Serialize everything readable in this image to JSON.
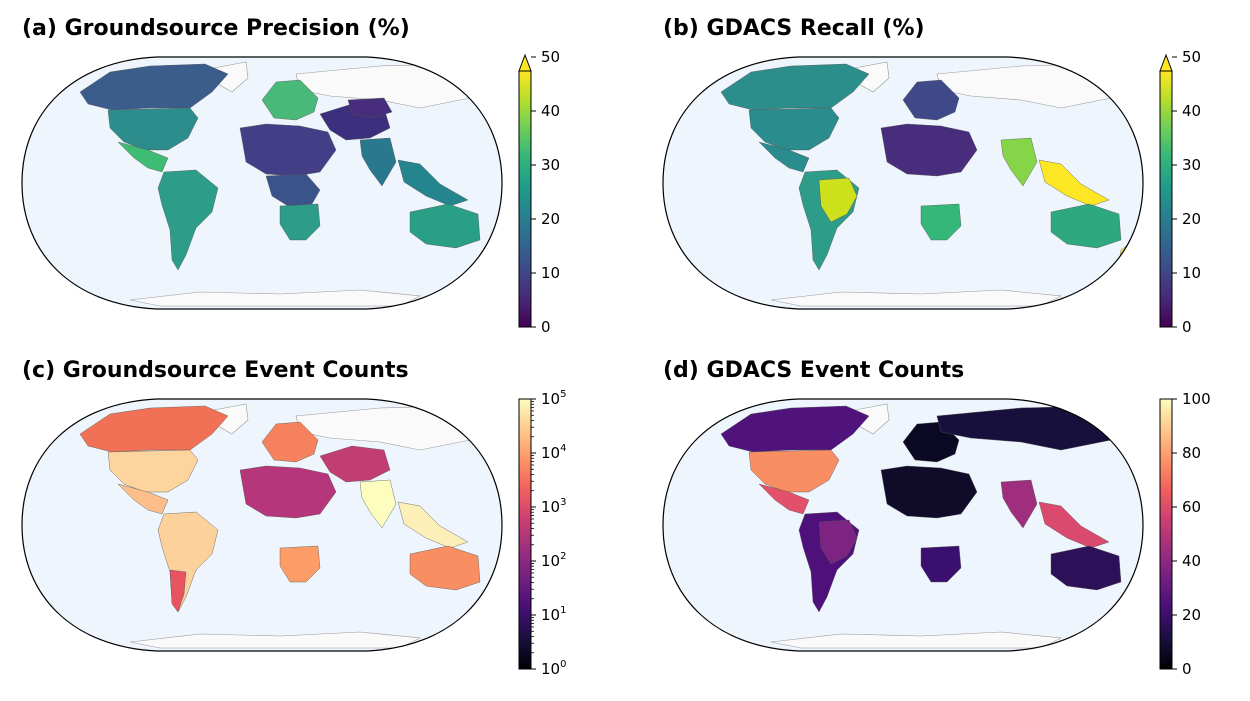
{
  "panels": [
    {
      "id": "a",
      "title": "(a) Groundsource Precision (%)",
      "colormap": "viridis",
      "colorbar": {
        "scale": "linear",
        "min": 0,
        "max": 50,
        "extend": "max",
        "ticks": [
          "0",
          "10",
          "20",
          "30",
          "40",
          "50"
        ]
      },
      "ocean_color": "#eef5fd",
      "land_color": "#fafafa"
    },
    {
      "id": "b",
      "title": "(b) GDACS Recall (%)",
      "colormap": "viridis",
      "colorbar": {
        "scale": "linear",
        "min": 0,
        "max": 50,
        "extend": "max",
        "ticks": [
          "0",
          "10",
          "20",
          "30",
          "40",
          "50"
        ]
      },
      "ocean_color": "#eef5fd",
      "land_color": "#fafafa"
    },
    {
      "id": "c",
      "title": "(c) Groundsource Event Counts",
      "colormap": "magma",
      "colorbar": {
        "scale": "log",
        "min": 1,
        "max": 100000,
        "ticks": [
          {
            "base": "10",
            "exp": "0"
          },
          {
            "base": "10",
            "exp": "1"
          },
          {
            "base": "10",
            "exp": "2"
          },
          {
            "base": "10",
            "exp": "3"
          },
          {
            "base": "10",
            "exp": "4"
          },
          {
            "base": "10",
            "exp": "5"
          }
        ]
      },
      "ocean_color": "#eef5fd",
      "land_color": "#fafafa"
    },
    {
      "id": "d",
      "title": "(d) GDACS Event Counts",
      "colormap": "magma",
      "colorbar": {
        "scale": "linear",
        "min": 0,
        "max": 100,
        "ticks": [
          "0",
          "20",
          "40",
          "60",
          "80",
          "100"
        ]
      },
      "ocean_color": "#eef5fd",
      "land_color": "#fafafa"
    }
  ],
  "map_regions": {
    "a": {
      "north_america": "#3a5d8b",
      "usa": "#2d8c8c",
      "mexico": "#3fbc73",
      "south_america": "#2d9c89",
      "europe": "#49b97a",
      "north_africa": "#433e85",
      "central_africa": "#3a538b",
      "southern_africa": "#2d9c89",
      "middle_east": "#3b2f7e",
      "south_asia": "#29788e",
      "southeast_asia": "#25858e",
      "australia": "#29a085",
      "russia_east": "#472d7b"
    },
    "b": {
      "north_america": "#2c8e8a",
      "usa": "#2a8c8c",
      "mexico": "#2a8c8c",
      "south_america": "#2d9c89",
      "brazil": "#cde11d",
      "europe": "#3f4889",
      "north_africa": "#472d7b",
      "southern_africa": "#35b779",
      "south_asia": "#86d549",
      "southeast_asia": "#fde725",
      "australia": "#2ea97f",
      "new_zealand": "#fde725"
    },
    "c": {
      "canada": "#f07155",
      "usa": "#fdd49e",
      "mexico": "#fcbf8c",
      "south_america": "#fcd19c",
      "argentina": "#e85362",
      "europe": "#f6825d",
      "north_africa": "#b5367a",
      "southern_africa": "#fc9d68",
      "india": "#fcfdbf",
      "middle_east": "#c13e72",
      "southeast_asia": "#fcf0b8",
      "australia": "#f98e63"
    },
    "d": {
      "canada": "#50127b",
      "usa": "#f98e63",
      "mexico": "#e3506a",
      "south_america": "#4e117b",
      "brazil": "#7d2482",
      "europe": "#0a0822",
      "north_africa": "#0f0b29",
      "southern_africa": "#3b0f70",
      "india": "#9f2e7e",
      "southeast_asia": "#d94a6e",
      "australia": "#2c1158",
      "russia_west": "#170f3c"
    }
  }
}
